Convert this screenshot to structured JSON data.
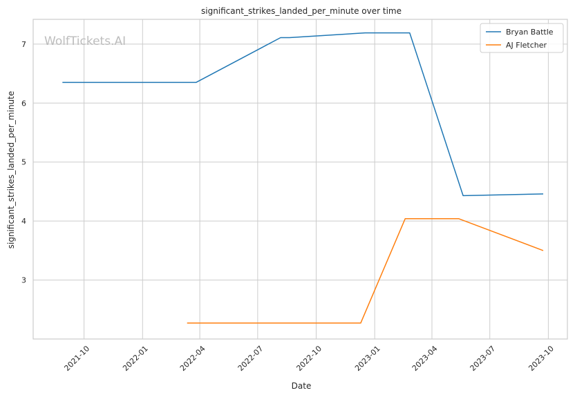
{
  "chart_data": {
    "type": "line",
    "title": "significant_strikes_landed_per_minute over time",
    "xlabel": "Date",
    "ylabel": "significant_strikes_landed_per_minute",
    "watermark": "WolfTickets.AI",
    "x_ticks": [
      "2021-10",
      "2022-01",
      "2022-04",
      "2022-07",
      "2022-10",
      "2023-01",
      "2023-04",
      "2023-07",
      "2023-10"
    ],
    "y_ticks": [
      3,
      4,
      5,
      6,
      7
    ],
    "xlim": [
      "2021-07-13",
      "2023-10-31"
    ],
    "ylim": [
      2.0,
      7.42
    ],
    "grid": true,
    "legend_position": "top-right",
    "colors": {
      "Bryan Battle": "#1f77b4",
      "AJ Fletcher": "#ff7f0e",
      "grid": "#cccccc",
      "axes": "#cccccc"
    },
    "series": [
      {
        "name": "Bryan Battle",
        "points": [
          {
            "x": "2021-08-28",
            "y": 6.35
          },
          {
            "x": "2022-03-26",
            "y": 6.35
          },
          {
            "x": "2022-08-06",
            "y": 7.11
          },
          {
            "x": "2022-08-20",
            "y": 7.11
          },
          {
            "x": "2022-12-17",
            "y": 7.19
          },
          {
            "x": "2023-02-25",
            "y": 7.19
          },
          {
            "x": "2023-05-20",
            "y": 4.43
          },
          {
            "x": "2023-09-23",
            "y": 4.46
          }
        ]
      },
      {
        "name": "AJ Fletcher",
        "points": [
          {
            "x": "2022-03-12",
            "y": 2.27
          },
          {
            "x": "2022-12-10",
            "y": 2.27
          },
          {
            "x": "2023-02-18",
            "y": 4.04
          },
          {
            "x": "2023-05-13",
            "y": 4.04
          },
          {
            "x": "2023-09-23",
            "y": 3.5
          }
        ]
      }
    ]
  }
}
